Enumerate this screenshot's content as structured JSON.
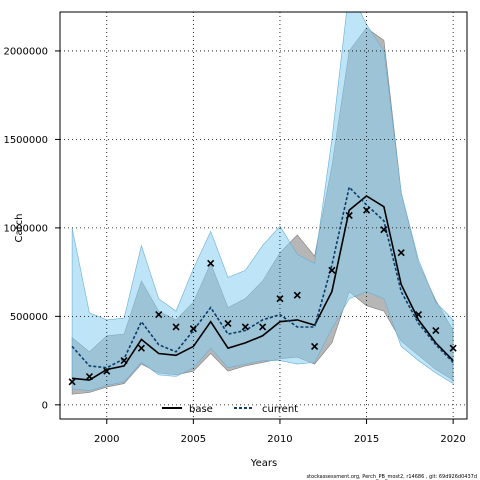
{
  "chart_data": {
    "type": "line",
    "xlabel": "Years",
    "ylabel": "Catch",
    "xlim": [
      1997.3,
      2020.8
    ],
    "ylim": [
      -80000,
      2220000
    ],
    "x_ticks": [
      2000,
      2005,
      2010,
      2015,
      2020
    ],
    "y_ticks": [
      0,
      500000,
      1000000,
      1500000,
      2000000
    ],
    "y_tick_labels": [
      "0",
      "500000",
      "1000000",
      "1500000",
      "2000000"
    ],
    "grid": true,
    "legend_position": "bottom-center",
    "colors": {
      "base_line": "#000000",
      "base_band": "#a9a9a9",
      "current_line": "#0b3d6b",
      "current_band": "#87cef0",
      "observed": "#000000"
    },
    "x": [
      1998,
      1999,
      2000,
      2001,
      2002,
      2003,
      2004,
      2005,
      2006,
      2007,
      2008,
      2009,
      2010,
      2011,
      2012,
      2013,
      2014,
      2015,
      2016,
      2017,
      2018,
      2019,
      2020
    ],
    "series": [
      {
        "name": "base",
        "style": "solid",
        "values": [
          150000,
          140000,
          200000,
          220000,
          370000,
          290000,
          280000,
          330000,
          470000,
          320000,
          350000,
          390000,
          470000,
          480000,
          450000,
          640000,
          1100000,
          1180000,
          1120000,
          680000,
          480000,
          350000,
          250000
        ],
        "lower": [
          60000,
          70000,
          100000,
          120000,
          230000,
          180000,
          170000,
          190000,
          290000,
          190000,
          220000,
          240000,
          260000,
          270000,
          230000,
          350000,
          640000,
          560000,
          530000,
          360000,
          280000,
          200000,
          140000
        ],
        "upper": [
          380000,
          300000,
          390000,
          400000,
          700000,
          530000,
          480000,
          580000,
          800000,
          550000,
          600000,
          700000,
          860000,
          960000,
          840000,
          1350000,
          2000000,
          2130000,
          2060000,
          1200000,
          800000,
          590000,
          420000
        ]
      },
      {
        "name": "current",
        "style": "dashed",
        "values": [
          330000,
          220000,
          210000,
          260000,
          470000,
          340000,
          300000,
          420000,
          550000,
          400000,
          420000,
          480000,
          510000,
          440000,
          440000,
          790000,
          1230000,
          1130000,
          1040000,
          640000,
          460000,
          340000,
          240000
        ],
        "lower": [
          90000,
          80000,
          110000,
          130000,
          240000,
          170000,
          160000,
          210000,
          320000,
          210000,
          230000,
          250000,
          250000,
          230000,
          240000,
          430000,
          600000,
          640000,
          600000,
          330000,
          250000,
          180000,
          120000
        ],
        "upper": [
          1000000,
          520000,
          480000,
          490000,
          900000,
          600000,
          530000,
          770000,
          980000,
          720000,
          760000,
          900000,
          1010000,
          850000,
          800000,
          1500000,
          2350000,
          2150000,
          2000000,
          1200000,
          820000,
          580000,
          480000
        ]
      }
    ],
    "observed": {
      "marker": "x",
      "values": [
        130000,
        160000,
        190000,
        250000,
        320000,
        510000,
        440000,
        430000,
        800000,
        460000,
        440000,
        440000,
        600000,
        620000,
        330000,
        760000,
        1070000,
        1100000,
        990000,
        860000,
        510000,
        420000,
        320000
      ]
    },
    "footnote": "stockassessment.org, Perch_PB_most2, r14686 , git: 69d926d0437d"
  }
}
